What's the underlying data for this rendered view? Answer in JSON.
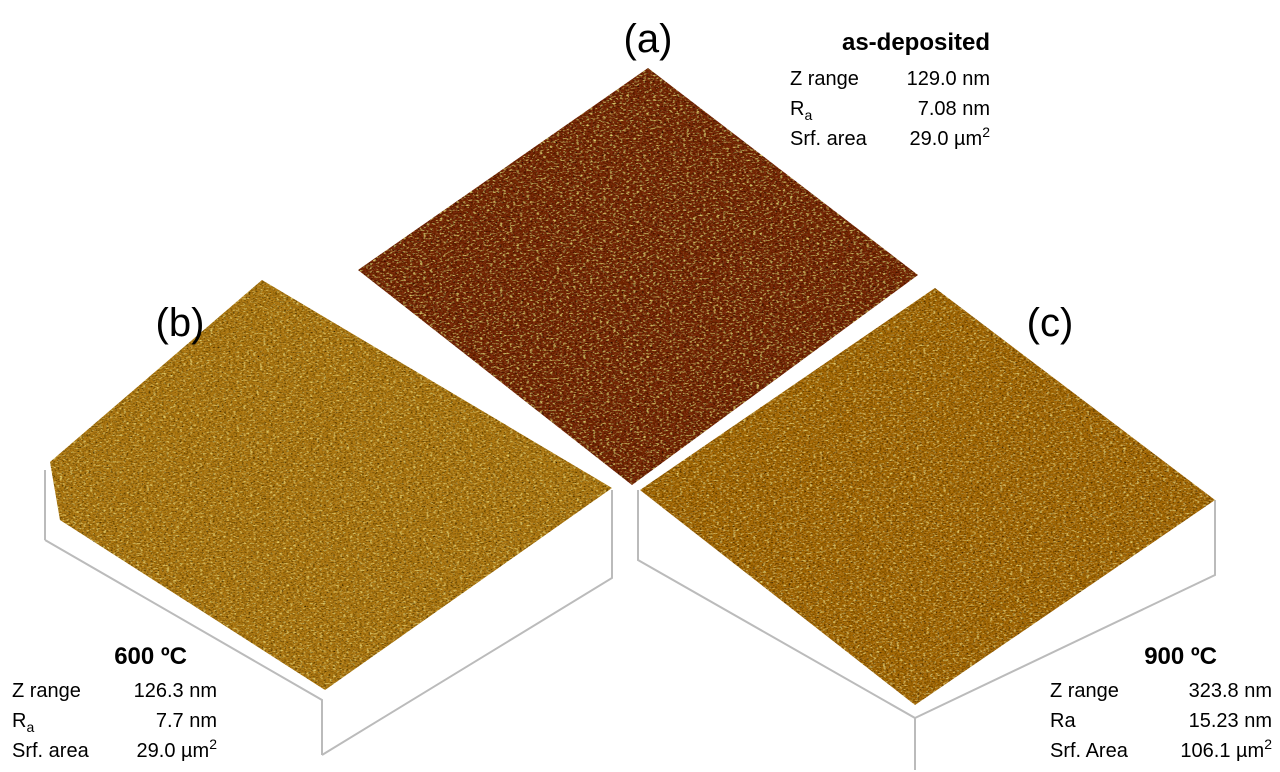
{
  "figure": {
    "panels": [
      {
        "label": "(a)",
        "title": "as-deposited",
        "rows": [
          {
            "name": "Z range",
            "value": "129.0 nm"
          },
          {
            "name": "R",
            "sub": "a",
            "value": "7.08 nm"
          },
          {
            "name": "Srf. area",
            "value": "29.0 µm",
            "sup": "2"
          }
        ]
      },
      {
        "label": "(b)",
        "title": "600 ºC",
        "rows": [
          {
            "name": "Z range",
            "value": "126.3 nm"
          },
          {
            "name": "R",
            "sub": "a",
            "value": "7.7 nm"
          },
          {
            "name": "Srf. area",
            "value": "29.0 µm",
            "sup": "2"
          }
        ]
      },
      {
        "label": "(c)",
        "title": "900 ºC",
        "rows": [
          {
            "name": "Z range",
            "value": "323.8 nm"
          },
          {
            "name": "Ra",
            "value": "15.23 nm"
          },
          {
            "name": "Srf. Area",
            "value": "106.1 µm",
            "sup": "2"
          }
        ]
      }
    ]
  }
}
